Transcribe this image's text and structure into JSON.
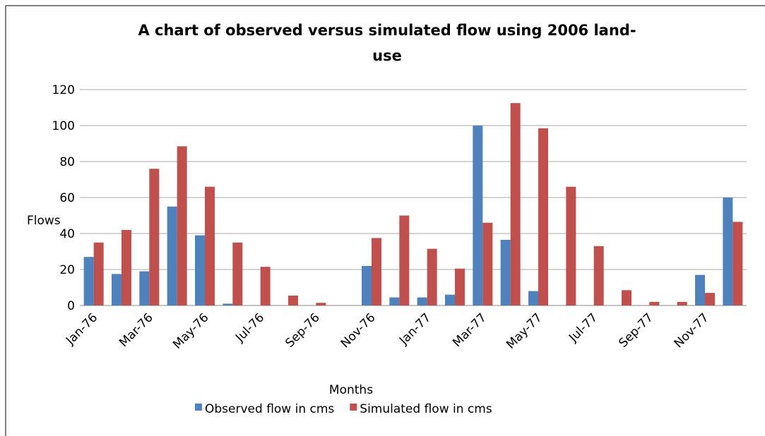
{
  "chart_data": {
    "type": "bar",
    "title": [
      "A chart of observed versus simulated flow using 2006 land-",
      "use"
    ],
    "x_label": "Months",
    "y_label": "Flows",
    "categories": [
      "Jan-76",
      null,
      "Mar-76",
      null,
      "May-76",
      null,
      "Jul-76",
      null,
      "Sep-76",
      null,
      "Nov-76",
      null,
      "Jan-77",
      null,
      "Mar-77",
      null,
      "May-77",
      null,
      "Jul-77",
      null,
      "Sep-77",
      null,
      "Nov-77",
      null
    ],
    "series": [
      {
        "name": "Observed flow in cms",
        "color": "#4f81bd",
        "values": [
          27,
          17.5,
          19,
          55,
          39,
          1,
          0,
          0,
          0,
          0,
          22,
          4.5,
          4.5,
          6,
          100,
          36.5,
          8,
          0,
          0,
          0,
          0,
          0,
          17,
          60
        ]
      },
      {
        "name": "Simulated flow in cms",
        "color": "#c0504d",
        "values": [
          35,
          42,
          76,
          88.5,
          66,
          35,
          21.5,
          5.5,
          1.5,
          0,
          37.5,
          50,
          31.5,
          20.5,
          46,
          112.5,
          98.5,
          66,
          33,
          8.5,
          2,
          2,
          7,
          46.5
        ]
      }
    ],
    "ylim": [
      0,
      120
    ],
    "yticks": [
      0,
      20,
      40,
      60,
      80,
      100,
      120
    ],
    "grid": true,
    "legend": "bottom"
  }
}
